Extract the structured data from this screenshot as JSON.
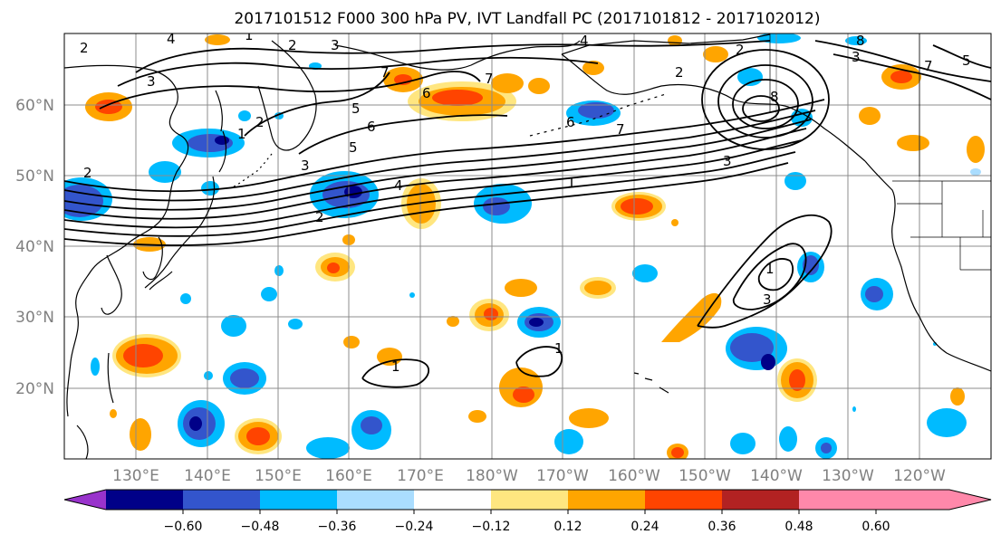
{
  "title": "2017101512 F000 300 hPa PV, IVT Landfall PC (2017101812 - 2017102012)",
  "lat_labels": [
    "60°N",
    "50°N",
    "40°N",
    "30°N",
    "20°N"
  ],
  "lon_labels": [
    "130°E",
    "140°E",
    "150°E",
    "160°E",
    "170°E",
    "180°W",
    "170°W",
    "160°W",
    "150°W",
    "140°W",
    "130°W",
    "120°W"
  ],
  "colorbar": {
    "ticks": [
      "−0.60",
      "−0.48",
      "−0.36",
      "−0.24",
      "−0.12",
      "0.12",
      "0.24",
      "0.36",
      "0.48",
      "0.60"
    ],
    "colors": [
      "#9933cc",
      "#000088",
      "#3355cc",
      "#00bbff",
      "#aaddff",
      "#ffffff",
      "#ffe680",
      "#ffa500",
      "#ff4400",
      "#b22222",
      "#ff88aa"
    ]
  },
  "contour_labels": [
    "2",
    "4",
    "1",
    "2",
    "3",
    "3",
    "7",
    "6",
    "5",
    "4",
    "3",
    "2",
    "2",
    "1",
    "2",
    "5",
    "6",
    "7",
    "7",
    "8",
    "6",
    "3",
    "1",
    "4",
    "2",
    "5",
    "7",
    "8",
    "3",
    "1",
    "3",
    "2",
    "1",
    "1"
  ],
  "colors": {
    "neg_light": "#aaddff",
    "neg_mid": "#00bbff",
    "neg_strong": "#3355cc",
    "neg_extreme": "#000088",
    "pos_light": "#ffe680",
    "pos_mid": "#ffa500",
    "pos_strong": "#ff4400",
    "pos_extreme": "#b22222"
  }
}
